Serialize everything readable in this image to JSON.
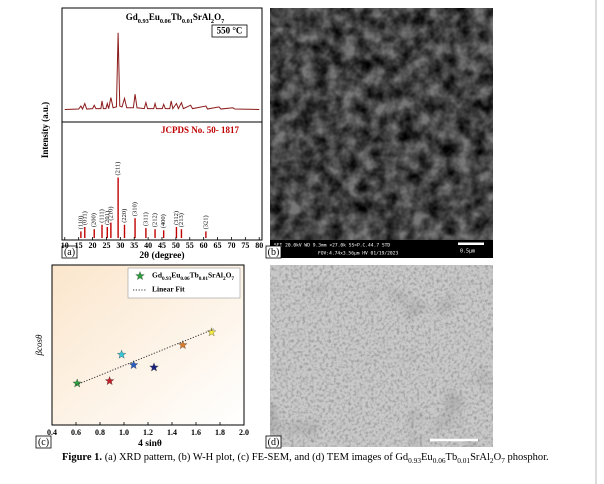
{
  "chart_data": [
    {
      "type": "line",
      "title": "Gd0.93Eu0.06Tb0.01SrAl2O7",
      "annotation": "550 °C",
      "ylabel": "Intensity (a.u.)",
      "color": "#8b1a1a",
      "xlim": [
        9,
        81
      ],
      "ylim": [
        0,
        115
      ],
      "x": [
        10,
        15,
        15.8,
        16.4,
        17.2,
        17.9,
        20,
        20.6,
        21.2,
        23,
        23.4,
        23.9,
        24.8,
        25.3,
        25.8,
        26.6,
        27.4,
        28.6,
        29.2,
        29.8,
        30.6,
        31.5,
        32.3,
        34.7,
        35.3,
        36,
        38.6,
        39.2,
        39.8,
        42,
        42.5,
        43,
        45.1,
        45.6,
        46.2,
        47.8,
        48.3,
        48.9,
        50.2,
        50.9,
        52,
        52.7,
        55.3,
        56,
        60.8,
        61.4,
        65.5,
        66.2,
        70.5,
        71.2,
        80
      ],
      "values": [
        10,
        10.5,
        14,
        10.5,
        17,
        10.5,
        11,
        15,
        11,
        11,
        20,
        11,
        11,
        17,
        11,
        24,
        12,
        13,
        100,
        14,
        13,
        23,
        12,
        12,
        28,
        12,
        11,
        18,
        11,
        11,
        17,
        11,
        11,
        16,
        11,
        11,
        20,
        11,
        17,
        11,
        18,
        11,
        15,
        11,
        14,
        10.5,
        13,
        10.5,
        12,
        10.5,
        10
      ]
    },
    {
      "type": "stem",
      "title": "JCPDS No. 50- 1817",
      "xlabel": "2θ (degree)",
      "color": "#c00000",
      "xlim": [
        9,
        81
      ],
      "ylim": [
        0,
        100
      ],
      "xticks": [
        10,
        15,
        20,
        25,
        30,
        35,
        40,
        45,
        50,
        55,
        60,
        65,
        70,
        75,
        80
      ],
      "x": [
        15.8,
        17.2,
        20.6,
        23.4,
        25.3,
        26.6,
        29.2,
        31.5,
        35.3,
        39.2,
        42.5,
        45.6,
        50.2,
        52,
        60.8
      ],
      "values": [
        6,
        10,
        8,
        12,
        10,
        14,
        55,
        12,
        18,
        9,
        8,
        7,
        10,
        8,
        6
      ],
      "labels": [
        "(110)",
        "(011)",
        "(200)",
        "(111)",
        "(201)",
        "(210)",
        "(211)",
        "(220)",
        "(310)",
        "(311)",
        "(212)",
        "(400)",
        "(312)",
        "(213)",
        "(321)"
      ]
    },
    {
      "type": "scatter",
      "xlabel": "4 sinθ",
      "ylabel": "βcosθ",
      "xlim": [
        0.4,
        2.0
      ],
      "ylim": [
        0,
        1
      ],
      "xticks": [
        0.4,
        0.6,
        0.8,
        {
          "value": 1,
          "label": "1.0"
        },
        1.2,
        1.4,
        1.6,
        1.8,
        {
          "value": 2,
          "label": "2.0"
        }
      ],
      "series": [
        {
          "name": "Gd0.93Eu0.06Tb0.01SrAl2O7",
          "colors": [
            "#2e9e3e",
            "#c0202a",
            "#36c4d6",
            "#2a5bbf",
            "#1a237e",
            "#d97b29",
            "#f2e640"
          ],
          "x": [
            0.61,
            0.88,
            0.98,
            1.08,
            1.25,
            1.49,
            1.73
          ],
          "values": [
            0.26,
            0.275,
            0.44,
            0.375,
            0.36,
            0.5,
            0.58
          ]
        },
        {
          "name": "Linear Fit",
          "color": "#333333",
          "dash": "dotted",
          "x": [
            0.6,
            1.75
          ],
          "values": [
            0.25,
            0.6
          ]
        }
      ]
    }
  ],
  "images": [
    {
      "info": [
        "SEI  20.0kV  WD 9.3mm  ×27.0k  SS=P.C.44.7  STD",
        "FOV:4.74x3.56μm   HV   01/19/2023"
      ],
      "scale": "0.5μm"
    },
    {}
  ],
  "panel_labels": [
    "(a)",
    "(b)",
    "(c)",
    "(d)"
  ],
  "caption": {
    "label": "Figure 1.",
    "text": "(a) XRD pattern, (b) W-H plot, (c) FE-SEM, and (d) TEM images of Gd0.93Eu0.06Tb0.01SrAl2O7 phosphor."
  }
}
